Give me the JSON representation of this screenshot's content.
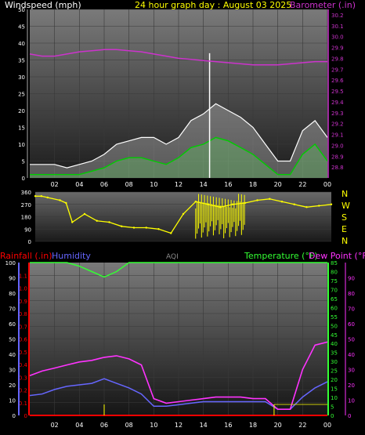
{
  "header": {
    "wind_title": "Windspeed (mph)",
    "graph_title": "24 hour graph day : August 03 2025",
    "baro_title": "Barometer (.in)"
  },
  "wind_dir_letters": [
    "N",
    "W",
    "S",
    "E",
    "N"
  ],
  "bottom_labels": {
    "rain": "Rainfall (.in)",
    "humidity": "Humidity",
    "aqi": "AQI",
    "temperature": "Temperature (°F)",
    "dewpoint": "Dew Point (°F)"
  },
  "colors": {
    "wind_gust": "#ffffff",
    "wind_avg": "#00cc00",
    "barometer": "#cc33cc",
    "wind_dir": "#ffff00",
    "humidity": "#6666ff",
    "temperature": "#33ff33",
    "dewpoint": "#ff33ff",
    "rain": "#ff0000",
    "rain_marker": "#ffff00"
  },
  "chart_data": [
    {
      "type": "line",
      "name": "wind_barometer",
      "x_ticks": [
        "02",
        "04",
        "06",
        "08",
        "10",
        "12",
        "14",
        "16",
        "18",
        "20",
        "22",
        "00"
      ],
      "ylabel": "Windspeed (mph)",
      "ylim": [
        0,
        50
      ],
      "y_ticks": [
        0,
        5,
        10,
        15,
        20,
        25,
        30,
        35,
        40,
        45,
        50
      ],
      "y2label": "Barometer (.in)",
      "y2lim": [
        28.7,
        30.25
      ],
      "y2_ticks": [
        28.8,
        28.9,
        29.0,
        29.1,
        29.2,
        29.3,
        29.4,
        29.5,
        29.6,
        29.7,
        29.8,
        29.9,
        30.0,
        30.1,
        30.2
      ],
      "x": [
        0,
        1,
        2,
        3,
        4,
        5,
        6,
        7,
        8,
        9,
        10,
        11,
        12,
        13,
        14,
        15,
        16,
        17,
        18,
        19,
        20,
        21,
        22,
        23,
        24
      ],
      "series": [
        {
          "name": "gust",
          "values": [
            4,
            4,
            4,
            3,
            4,
            5,
            7,
            10,
            11,
            12,
            12,
            10,
            12,
            17,
            19,
            22,
            20,
            18,
            15,
            10,
            5,
            5,
            14,
            17,
            12
          ]
        },
        {
          "name": "average",
          "values": [
            1,
            1,
            1,
            1,
            1,
            2,
            3,
            5,
            6,
            6,
            5,
            4,
            6,
            9,
            10,
            12,
            11,
            9,
            7,
            4,
            1,
            1,
            7,
            10,
            5
          ]
        },
        {
          "name": "barometer",
          "values": [
            29.84,
            29.82,
            29.82,
            29.84,
            29.86,
            29.87,
            29.88,
            29.88,
            29.87,
            29.86,
            29.84,
            29.82,
            29.8,
            29.79,
            29.78,
            29.77,
            29.76,
            29.75,
            29.74,
            29.74,
            29.74,
            29.75,
            29.76,
            29.77,
            29.77
          ]
        }
      ],
      "spike": {
        "x": 14.5,
        "value": 37
      }
    },
    {
      "type": "line",
      "name": "wind_direction",
      "ylim": [
        0,
        360
      ],
      "y_ticks": [
        0,
        90,
        180,
        270,
        360
      ],
      "x": [
        0,
        0.5,
        1,
        2,
        2.5,
        3,
        4,
        5,
        6,
        7,
        8,
        9,
        10,
        11,
        12,
        13,
        14,
        15,
        16,
        17,
        18,
        19,
        20,
        21,
        22,
        23,
        24
      ],
      "values": [
        330,
        330,
        320,
        300,
        280,
        140,
        200,
        150,
        140,
        110,
        100,
        100,
        90,
        60,
        200,
        290,
        270,
        250,
        270,
        280,
        300,
        310,
        290,
        270,
        250,
        260,
        270
      ]
    },
    {
      "type": "line",
      "name": "rain_humidity_temp_dew",
      "x_ticks": [
        "02",
        "04",
        "06",
        "08",
        "10",
        "12",
        "14",
        "16",
        "18",
        "20",
        "22",
        "00"
      ],
      "rain_ylim": [
        0,
        1.2
      ],
      "rain_ticks": [
        0,
        0.1,
        0.2,
        0.3,
        0.4,
        0.5,
        0.6,
        0.7,
        0.8,
        0.9,
        1.0,
        1.1
      ],
      "hum_ylim": [
        0,
        100
      ],
      "hum_ticks": [
        0,
        10,
        20,
        30,
        40,
        50,
        60,
        70,
        80,
        90,
        100
      ],
      "temp_ylim": [
        0,
        85
      ],
      "temp_ticks": [
        0,
        5,
        10,
        15,
        20,
        25,
        30,
        35,
        40,
        45,
        50,
        55,
        60,
        65,
        70,
        75,
        80,
        85
      ],
      "dew_ylim": [
        0,
        100
      ],
      "dew_ticks": [
        0,
        10,
        20,
        30,
        40,
        50,
        60,
        70,
        80,
        90
      ],
      "x": [
        0,
        1,
        2,
        3,
        4,
        5,
        6,
        7,
        8,
        9,
        10,
        11,
        12,
        13,
        14,
        15,
        16,
        17,
        18,
        19,
        20,
        21,
        22,
        23,
        24
      ],
      "series": [
        {
          "name": "humidity",
          "values": [
            13,
            14,
            17,
            19,
            20,
            21,
            24,
            21,
            18,
            14,
            6,
            6,
            7,
            8,
            9,
            9,
            9,
            9,
            9,
            9,
            4,
            4,
            12,
            18,
            22
          ]
        },
        {
          "name": "temperature",
          "values": [
            90,
            89,
            88,
            86,
            83,
            80,
            77,
            80,
            87,
            92,
            95,
            96,
            96,
            96,
            96,
            96,
            96,
            96,
            96,
            96,
            96,
            96,
            96,
            96,
            96
          ]
        },
        {
          "name": "dewpoint",
          "values": [
            26,
            29,
            31,
            33,
            35,
            36,
            38,
            39,
            37,
            33,
            11,
            8,
            9,
            10,
            11,
            12,
            12,
            12,
            11,
            11,
            4,
            4,
            30,
            46,
            48
          ]
        },
        {
          "name": "rain",
          "values": [
            0,
            0,
            0,
            0,
            0,
            0,
            0,
            0,
            0,
            0,
            0,
            0,
            0,
            0,
            0,
            0,
            0,
            0,
            0,
            0,
            0,
            0,
            0,
            0,
            0
          ]
        }
      ]
    }
  ]
}
